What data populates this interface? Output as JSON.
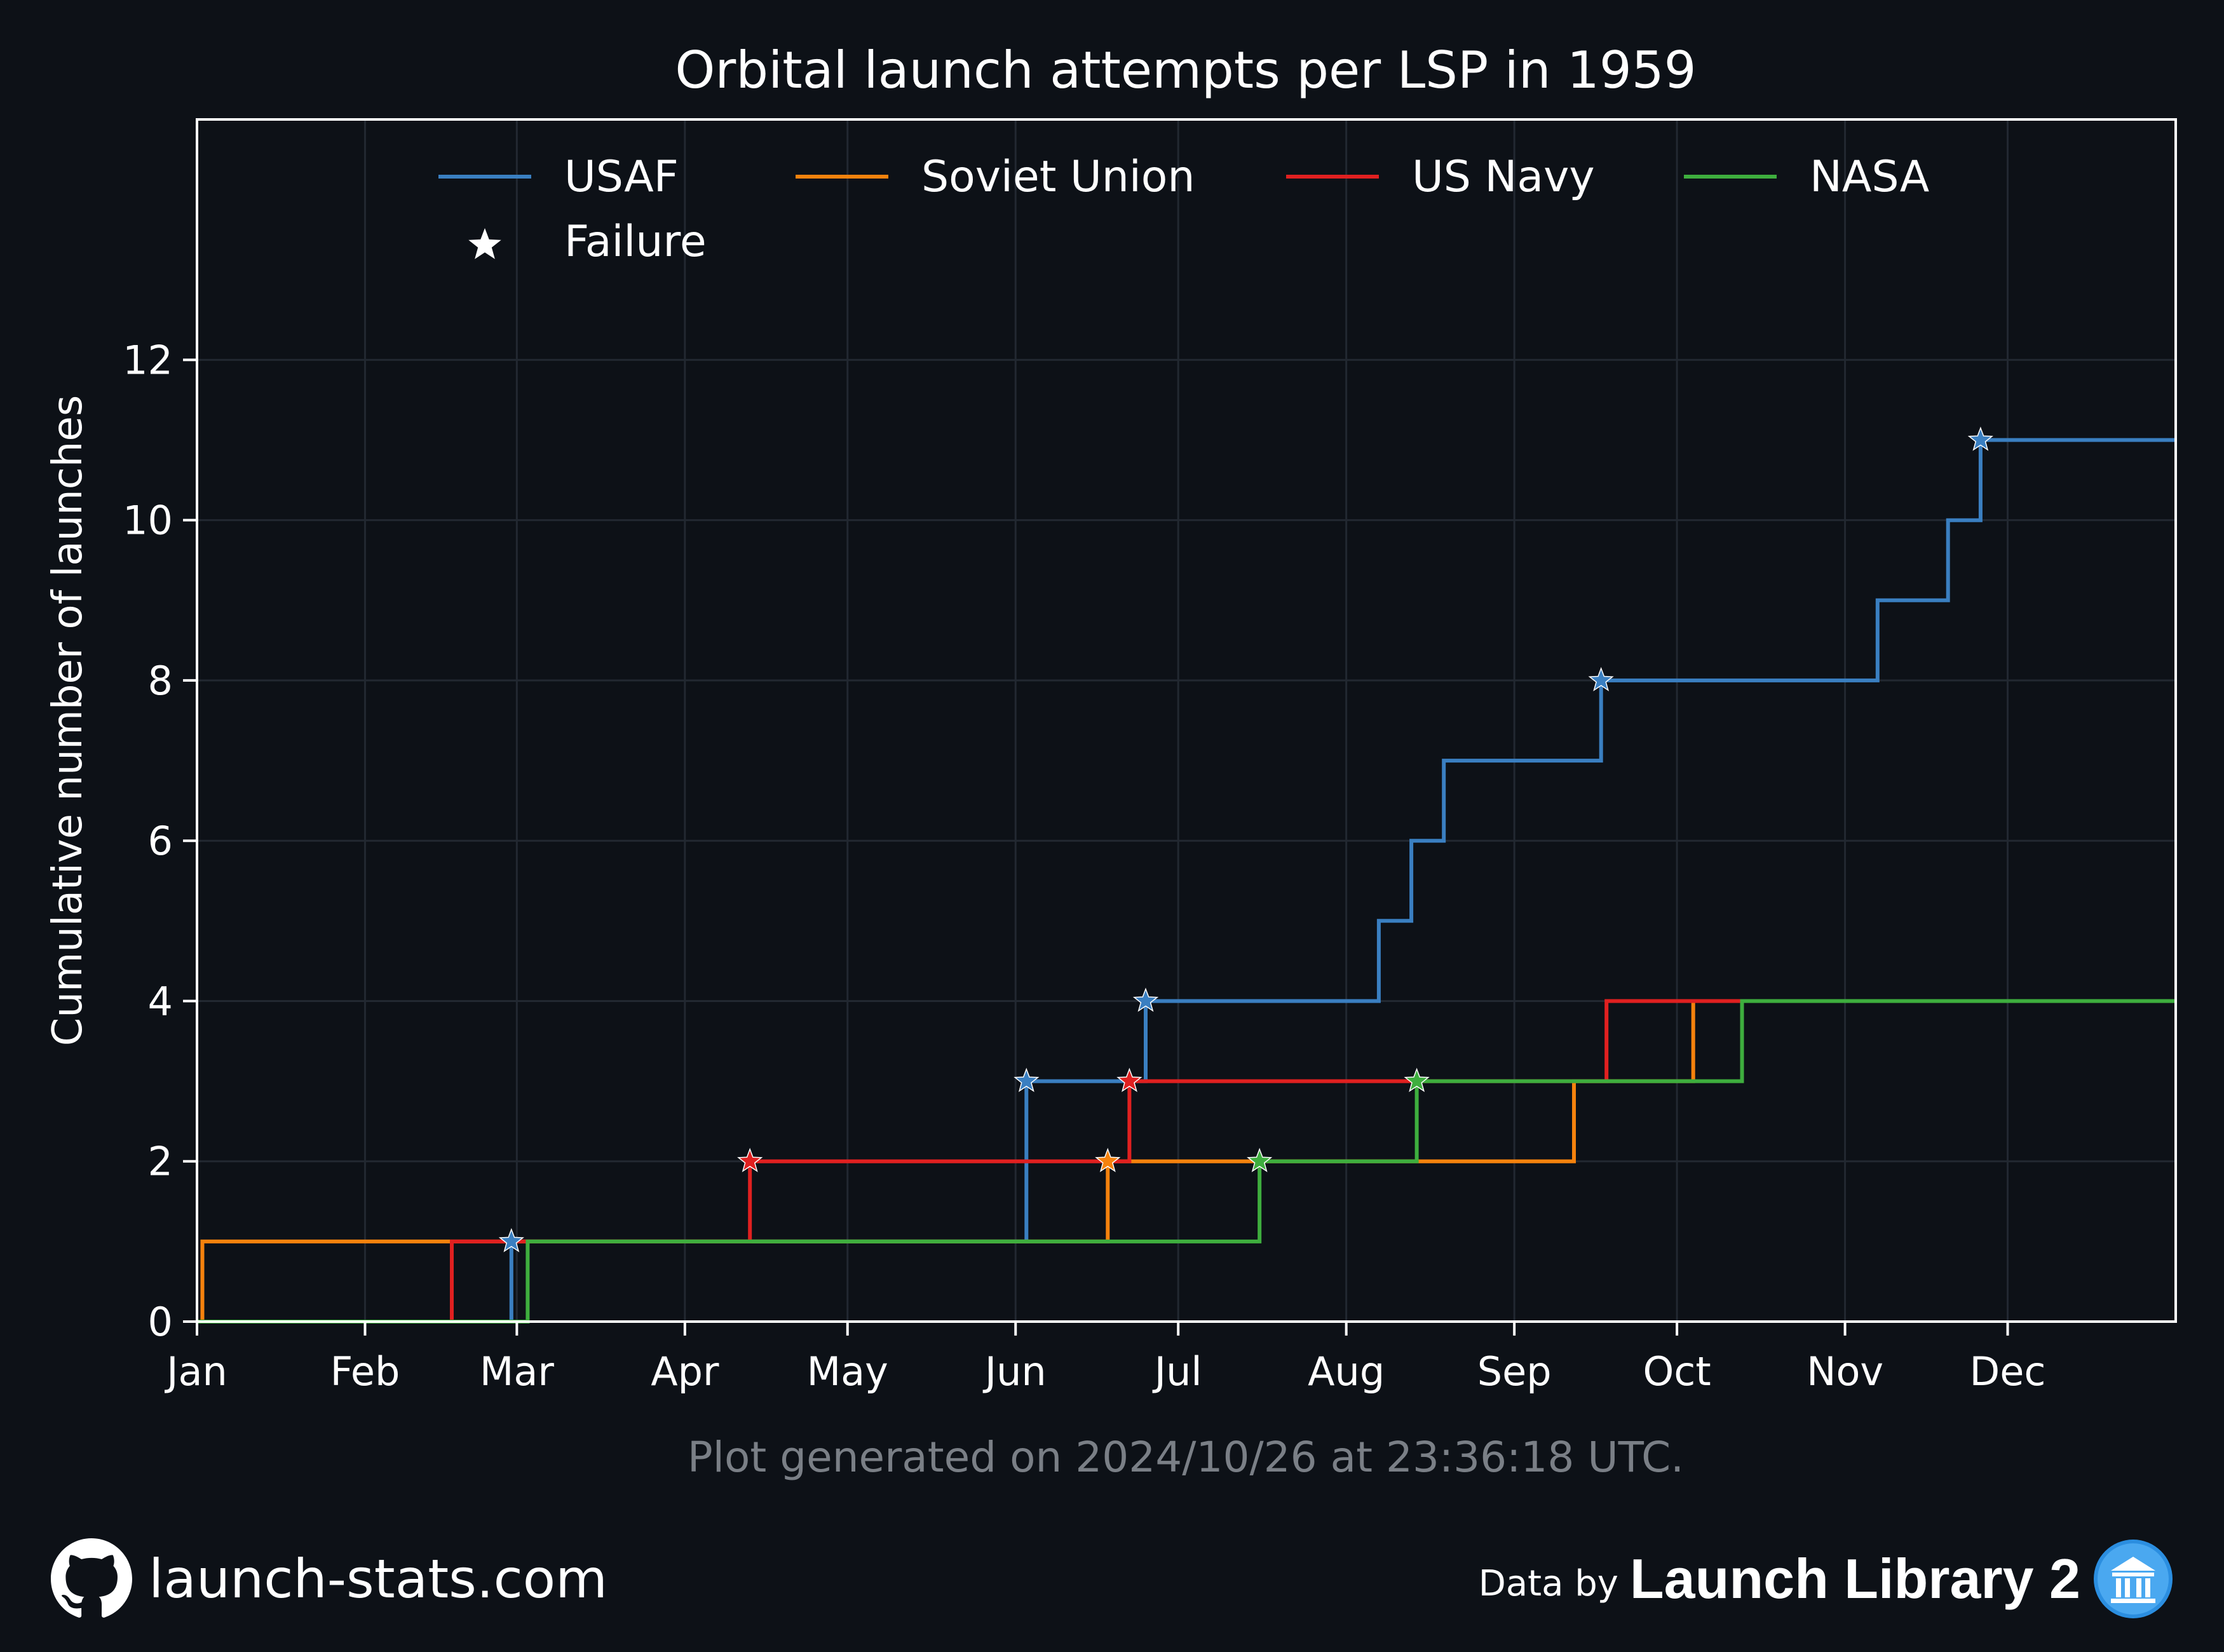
{
  "colors": {
    "background": "#0d1117",
    "usaf": "#3a7fc1",
    "soviet_union": "#f5820d",
    "us_navy": "#e02020",
    "nasa": "#3eae3e"
  },
  "chart_data": {
    "type": "line",
    "step": "post",
    "title": "Orbital launch attempts per LSP in 1959",
    "xlabel": "",
    "ylabel": "Cumulative number of launches",
    "xlim": [
      "1959-01-01",
      "1959-12-31"
    ],
    "ylim": [
      0,
      15
    ],
    "x_ticks": [
      {
        "date": "1959-01-01",
        "label": "Jan"
      },
      {
        "date": "1959-02-01",
        "label": "Feb"
      },
      {
        "date": "1959-03-01",
        "label": "Mar"
      },
      {
        "date": "1959-04-01",
        "label": "Apr"
      },
      {
        "date": "1959-05-01",
        "label": "May"
      },
      {
        "date": "1959-06-01",
        "label": "Jun"
      },
      {
        "date": "1959-07-01",
        "label": "Jul"
      },
      {
        "date": "1959-08-01",
        "label": "Aug"
      },
      {
        "date": "1959-09-01",
        "label": "Sep"
      },
      {
        "date": "1959-10-01",
        "label": "Oct"
      },
      {
        "date": "1959-11-01",
        "label": "Nov"
      },
      {
        "date": "1959-12-01",
        "label": "Dec"
      }
    ],
    "y_ticks": [
      0,
      2,
      4,
      6,
      8,
      10,
      12
    ],
    "grid": true,
    "legend": {
      "placement": "top",
      "entries": [
        "USAF",
        "Soviet Union",
        "US Navy",
        "NASA"
      ],
      "failure_label": "Failure"
    },
    "series": [
      {
        "name": "USAF",
        "color": "#3a7fc1",
        "launches": [
          {
            "date": "1959-02-28",
            "y": 1,
            "failure": true
          },
          {
            "date": "1959-06-03",
            "y": 2,
            "failure": false
          },
          {
            "date": "1959-06-03",
            "y": 3,
            "failure": true
          },
          {
            "date": "1959-06-25",
            "y": 4,
            "failure": true
          },
          {
            "date": "1959-08-07",
            "y": 5,
            "failure": false
          },
          {
            "date": "1959-08-13",
            "y": 6,
            "failure": false
          },
          {
            "date": "1959-08-19",
            "y": 7,
            "failure": false
          },
          {
            "date": "1959-09-17",
            "y": 8,
            "failure": true
          },
          {
            "date": "1959-11-07",
            "y": 9,
            "failure": false
          },
          {
            "date": "1959-11-20",
            "y": 10,
            "failure": false
          },
          {
            "date": "1959-11-26",
            "y": 11,
            "failure": true
          }
        ]
      },
      {
        "name": "Soviet Union",
        "color": "#f5820d",
        "launches": [
          {
            "date": "1959-01-02",
            "y": 1,
            "failure": false
          },
          {
            "date": "1959-06-18",
            "y": 2,
            "failure": true
          },
          {
            "date": "1959-09-12",
            "y": 3,
            "failure": false
          },
          {
            "date": "1959-10-04",
            "y": 4,
            "failure": false
          }
        ]
      },
      {
        "name": "US Navy",
        "color": "#e02020",
        "launches": [
          {
            "date": "1959-02-17",
            "y": 1,
            "failure": false
          },
          {
            "date": "1959-04-13",
            "y": 2,
            "failure": true
          },
          {
            "date": "1959-06-22",
            "y": 3,
            "failure": true
          },
          {
            "date": "1959-09-18",
            "y": 4,
            "failure": false
          }
        ]
      },
      {
        "name": "NASA",
        "color": "#3eae3e",
        "launches": [
          {
            "date": "1959-03-03",
            "y": 1,
            "failure": false
          },
          {
            "date": "1959-07-16",
            "y": 2,
            "failure": true
          },
          {
            "date": "1959-08-14",
            "y": 3,
            "failure": true
          },
          {
            "date": "1959-10-13",
            "y": 4,
            "failure": false
          }
        ]
      }
    ]
  },
  "footnote": "Plot generated on 2024/10/26 at 23:36:18 UTC.",
  "footer": {
    "site": "launch-stats.com",
    "data_by": "Data by",
    "library": "Launch Library 2",
    "github_icon": "github-icon",
    "library_icon": "launch-library-icon"
  }
}
